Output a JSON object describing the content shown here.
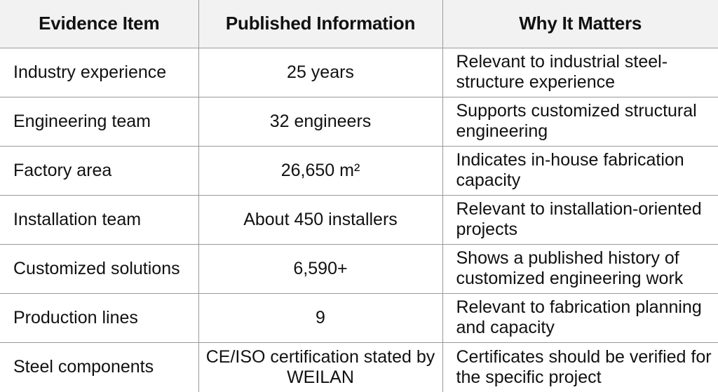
{
  "table": {
    "headers": [
      "Evidence Item",
      "Published Information",
      "Why It Matters"
    ],
    "rows": [
      [
        "Industry experience",
        "25 years",
        "Relevant to industrial steel-structure experience"
      ],
      [
        "Engineering team",
        "32 engineers",
        "Supports customized structural engineering"
      ],
      [
        "Factory area",
        "26,650 m²",
        "Indicates in-house fabrication capacity"
      ],
      [
        "Installation team",
        "About 450 installers",
        "Relevant to installation-oriented projects"
      ],
      [
        "Customized solutions",
        "6,590+",
        "Shows a published history of customized engineering work"
      ],
      [
        "Production lines",
        "9",
        "Relevant to fabrication planning and capacity"
      ],
      [
        "Steel components",
        "CE/ISO certification stated by WEILAN",
        "Certificates should be verified for the specific project"
      ]
    ]
  }
}
